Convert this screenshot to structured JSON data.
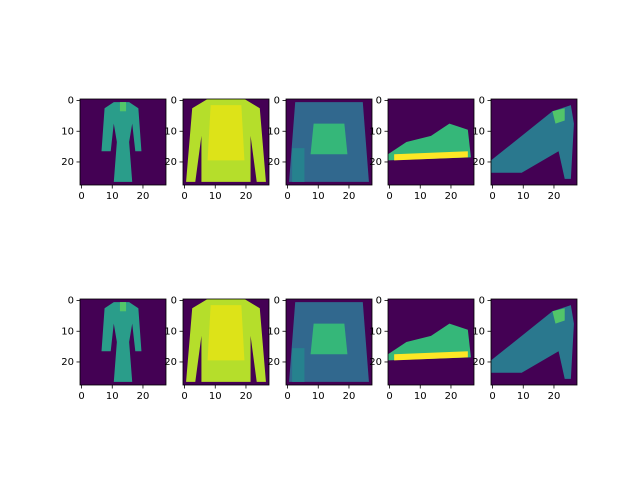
{
  "chart_data": [
    {
      "type": "image",
      "xlim": [
        -0.5,
        27.5
      ],
      "ylim": [
        27.5,
        -0.5
      ],
      "xticks": [
        0,
        10,
        20
      ],
      "yticks": [
        0,
        10,
        20
      ]
    },
    {
      "type": "image",
      "xlim": [
        -0.5,
        27.5
      ],
      "ylim": [
        27.5,
        -0.5
      ],
      "xticks": [
        0,
        10,
        20
      ],
      "yticks": [
        0,
        10,
        20
      ]
    },
    {
      "type": "image",
      "xlim": [
        -0.5,
        27.5
      ],
      "ylim": [
        27.5,
        -0.5
      ],
      "xticks": [
        0,
        10,
        20
      ],
      "yticks": [
        0,
        10,
        20
      ]
    },
    {
      "type": "image",
      "xlim": [
        -0.5,
        27.5
      ],
      "ylim": [
        27.5,
        -0.5
      ],
      "xticks": [
        0,
        10,
        20
      ],
      "yticks": [
        0,
        10,
        20
      ]
    },
    {
      "type": "image",
      "xlim": [
        -0.5,
        27.5
      ],
      "ylim": [
        27.5,
        -0.5
      ],
      "xticks": [
        0,
        10,
        20
      ],
      "yticks": [
        0,
        10,
        20
      ]
    },
    {
      "type": "image",
      "xlim": [
        -0.5,
        27.5
      ],
      "ylim": [
        27.5,
        -0.5
      ],
      "xticks": [
        0,
        10,
        20
      ],
      "yticks": [
        0,
        10,
        20
      ]
    },
    {
      "type": "image",
      "xlim": [
        -0.5,
        27.5
      ],
      "ylim": [
        27.5,
        -0.5
      ],
      "xticks": [
        0,
        10,
        20
      ],
      "yticks": [
        0,
        10,
        20
      ]
    },
    {
      "type": "image",
      "xlim": [
        -0.5,
        27.5
      ],
      "ylim": [
        27.5,
        -0.5
      ],
      "xticks": [
        0,
        10,
        20
      ],
      "yticks": [
        0,
        10,
        20
      ]
    },
    {
      "type": "image",
      "xlim": [
        -0.5,
        27.5
      ],
      "ylim": [
        27.5,
        -0.5
      ],
      "xticks": [
        0,
        10,
        20
      ],
      "yticks": [
        0,
        10,
        20
      ]
    },
    {
      "type": "image",
      "xlim": [
        -0.5,
        27.5
      ],
      "ylim": [
        27.5,
        -0.5
      ],
      "xticks": [
        0,
        10,
        20
      ],
      "yticks": [
        0,
        10,
        20
      ]
    }
  ]
}
